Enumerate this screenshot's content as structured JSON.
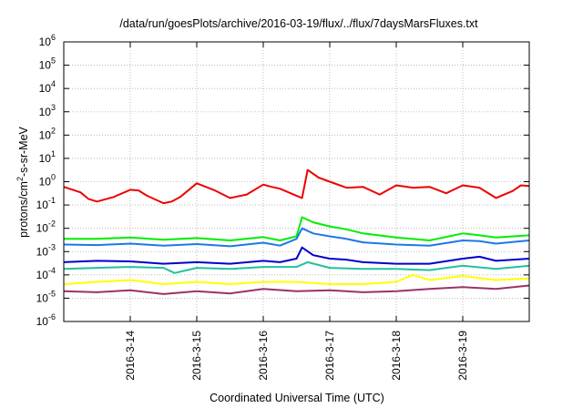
{
  "chart_data": {
    "type": "line",
    "title": "/data/run/goesPlots/archive/2016-03-19/flux/../flux/7daysMarsFluxes.txt",
    "xlabel": "Coordinated Universal Time (UTC)",
    "ylabel": {
      "prefix": "protons/cm",
      "sup": "2",
      "suffix": "-s-sr-MeV"
    },
    "yscale": "log",
    "ylim": [
      1e-06,
      1000000.0
    ],
    "y_ticks": [
      {
        "value": 1e-06,
        "base": "10",
        "exp": "-6"
      },
      {
        "value": 1e-05,
        "base": "10",
        "exp": "-5"
      },
      {
        "value": 0.0001,
        "base": "10",
        "exp": "-4"
      },
      {
        "value": 0.001,
        "base": "10",
        "exp": "-3"
      },
      {
        "value": 0.01,
        "base": "10",
        "exp": "-2"
      },
      {
        "value": 0.1,
        "base": "10",
        "exp": "-1"
      },
      {
        "value": 1.0,
        "base": "10",
        "exp": "0"
      },
      {
        "value": 10.0,
        "base": "10",
        "exp": "1"
      },
      {
        "value": 100.0,
        "base": "10",
        "exp": "2"
      },
      {
        "value": 1000.0,
        "base": "10",
        "exp": "3"
      },
      {
        "value": 10000.0,
        "base": "10",
        "exp": "4"
      },
      {
        "value": 100000.0,
        "base": "10",
        "exp": "5"
      },
      {
        "value": 1000000.0,
        "base": "10",
        "exp": "6"
      }
    ],
    "xlim": [
      "2016-03-13 00:00",
      "2016-03-20 00:00"
    ],
    "x_ticks": [
      {
        "value": "2016-03-14 00:00",
        "label": "2016-3-14"
      },
      {
        "value": "2016-03-15 00:00",
        "label": "2016-3-15"
      },
      {
        "value": "2016-03-16 00:00",
        "label": "2016-3-16"
      },
      {
        "value": "2016-03-17 00:00",
        "label": "2016-3-17"
      },
      {
        "value": "2016-03-18 00:00",
        "label": "2016-3-18"
      },
      {
        "value": "2016-03-19 00:00",
        "label": "2016-3-19"
      }
    ],
    "grid": true,
    "legend": "none",
    "series": [
      {
        "color": "#ee0000",
        "x": [
          "2016-03-13 00:00",
          "2016-03-13 06:00",
          "2016-03-13 09:00",
          "2016-03-13 12:00",
          "2016-03-13 18:00",
          "2016-03-14 00:00",
          "2016-03-14 03:00",
          "2016-03-14 06:00",
          "2016-03-14 12:00",
          "2016-03-14 15:00",
          "2016-03-14 18:00",
          "2016-03-15 00:00",
          "2016-03-15 06:00",
          "2016-03-15 12:00",
          "2016-03-15 18:00",
          "2016-03-16 00:00",
          "2016-03-16 03:00",
          "2016-03-16 06:00",
          "2016-03-16 12:00",
          "2016-03-16 14:00",
          "2016-03-16 16:00",
          "2016-03-16 20:00",
          "2016-03-17 00:00",
          "2016-03-17 06:00",
          "2016-03-17 12:00",
          "2016-03-17 18:00",
          "2016-03-18 00:00",
          "2016-03-18 06:00",
          "2016-03-18 12:00",
          "2016-03-18 18:00",
          "2016-03-19 00:00",
          "2016-03-19 06:00",
          "2016-03-19 12:00",
          "2016-03-19 18:00",
          "2016-03-19 21:00",
          "2016-03-20 00:00"
        ],
        "y": [
          0.6,
          0.35,
          0.18,
          0.14,
          0.22,
          0.45,
          0.42,
          0.25,
          0.12,
          0.14,
          0.22,
          0.85,
          0.45,
          0.2,
          0.28,
          0.75,
          0.6,
          0.5,
          0.25,
          0.2,
          3.2,
          1.5,
          1.0,
          0.55,
          0.6,
          0.28,
          0.7,
          0.55,
          0.6,
          0.32,
          0.7,
          0.55,
          0.2,
          0.4,
          0.7,
          0.65
        ]
      },
      {
        "color": "#00ee00",
        "x": [
          "2016-03-13 00:00",
          "2016-03-13 12:00",
          "2016-03-14 00:00",
          "2016-03-14 12:00",
          "2016-03-15 00:00",
          "2016-03-15 12:00",
          "2016-03-16 00:00",
          "2016-03-16 06:00",
          "2016-03-16 12:00",
          "2016-03-16 14:00",
          "2016-03-16 18:00",
          "2016-03-17 00:00",
          "2016-03-17 06:00",
          "2016-03-17 12:00",
          "2016-03-18 00:00",
          "2016-03-18 12:00",
          "2016-03-19 00:00",
          "2016-03-19 06:00",
          "2016-03-19 12:00",
          "2016-03-20 00:00"
        ],
        "y": [
          0.0035,
          0.0035,
          0.004,
          0.0032,
          0.0038,
          0.003,
          0.0042,
          0.003,
          0.0045,
          0.03,
          0.018,
          0.012,
          0.009,
          0.006,
          0.004,
          0.003,
          0.006,
          0.005,
          0.004,
          0.005
        ]
      },
      {
        "color": "#1e78e6",
        "x": [
          "2016-03-13 00:00",
          "2016-03-13 12:00",
          "2016-03-14 00:00",
          "2016-03-14 12:00",
          "2016-03-15 00:00",
          "2016-03-15 12:00",
          "2016-03-16 00:00",
          "2016-03-16 06:00",
          "2016-03-16 12:00",
          "2016-03-16 14:00",
          "2016-03-16 18:00",
          "2016-03-17 00:00",
          "2016-03-17 06:00",
          "2016-03-17 12:00",
          "2016-03-18 00:00",
          "2016-03-18 12:00",
          "2016-03-19 00:00",
          "2016-03-19 06:00",
          "2016-03-19 12:00",
          "2016-03-20 00:00"
        ],
        "y": [
          0.002,
          0.0019,
          0.0022,
          0.0018,
          0.0021,
          0.0017,
          0.0024,
          0.0018,
          0.0035,
          0.01,
          0.006,
          0.0045,
          0.0035,
          0.0025,
          0.002,
          0.0018,
          0.003,
          0.0028,
          0.0022,
          0.003
        ]
      },
      {
        "color": "#0000cc",
        "x": [
          "2016-03-13 00:00",
          "2016-03-13 12:00",
          "2016-03-14 00:00",
          "2016-03-14 12:00",
          "2016-03-15 00:00",
          "2016-03-15 12:00",
          "2016-03-16 00:00",
          "2016-03-16 06:00",
          "2016-03-16 12:00",
          "2016-03-16 14:00",
          "2016-03-16 18:00",
          "2016-03-17 00:00",
          "2016-03-17 06:00",
          "2016-03-17 12:00",
          "2016-03-18 00:00",
          "2016-03-18 12:00",
          "2016-03-19 00:00",
          "2016-03-19 06:00",
          "2016-03-19 12:00",
          "2016-03-20 00:00"
        ],
        "y": [
          0.00035,
          0.0004,
          0.00038,
          0.0003,
          0.00035,
          0.0003,
          0.0004,
          0.00035,
          0.0005,
          0.0015,
          0.0007,
          0.0005,
          0.00045,
          0.00035,
          0.0003,
          0.0003,
          0.0005,
          0.0006,
          0.0004,
          0.0005
        ]
      },
      {
        "color": "#22c0a0",
        "x": [
          "2016-03-13 00:00",
          "2016-03-13 12:00",
          "2016-03-14 00:00",
          "2016-03-14 12:00",
          "2016-03-14 16:00",
          "2016-03-15 00:00",
          "2016-03-15 12:00",
          "2016-03-16 00:00",
          "2016-03-16 12:00",
          "2016-03-16 16:00",
          "2016-03-17 00:00",
          "2016-03-17 12:00",
          "2016-03-18 00:00",
          "2016-03-18 12:00",
          "2016-03-19 00:00",
          "2016-03-19 12:00",
          "2016-03-20 00:00"
        ],
        "y": [
          0.00018,
          0.0002,
          0.00022,
          0.0002,
          0.00012,
          0.0002,
          0.00018,
          0.00022,
          0.00022,
          0.00035,
          0.0002,
          0.00018,
          0.00018,
          0.00016,
          0.00025,
          0.00018,
          0.00025
        ]
      },
      {
        "color": "#ffff00",
        "x": [
          "2016-03-13 00:00",
          "2016-03-13 12:00",
          "2016-03-14 00:00",
          "2016-03-14 12:00",
          "2016-03-15 00:00",
          "2016-03-15 12:00",
          "2016-03-16 00:00",
          "2016-03-16 12:00",
          "2016-03-17 00:00",
          "2016-03-17 12:00",
          "2016-03-18 00:00",
          "2016-03-18 06:00",
          "2016-03-18 12:00",
          "2016-03-19 00:00",
          "2016-03-19 12:00",
          "2016-03-20 00:00"
        ],
        "y": [
          4e-05,
          5e-05,
          6e-05,
          4e-05,
          5e-05,
          4e-05,
          5e-05,
          5e-05,
          4e-05,
          4e-05,
          5e-05,
          0.0001,
          6e-05,
          9e-05,
          6e-05,
          7e-05
        ]
      },
      {
        "color": "#993366",
        "x": [
          "2016-03-13 00:00",
          "2016-03-13 12:00",
          "2016-03-14 00:00",
          "2016-03-14 12:00",
          "2016-03-15 00:00",
          "2016-03-15 12:00",
          "2016-03-16 00:00",
          "2016-03-16 12:00",
          "2016-03-17 00:00",
          "2016-03-17 12:00",
          "2016-03-18 00:00",
          "2016-03-18 12:00",
          "2016-03-19 00:00",
          "2016-03-19 12:00",
          "2016-03-20 00:00"
        ],
        "y": [
          2e-05,
          1.8e-05,
          2.2e-05,
          1.5e-05,
          2e-05,
          1.6e-05,
          2.5e-05,
          2e-05,
          2.2e-05,
          1.8e-05,
          2e-05,
          2.5e-05,
          3e-05,
          2.5e-05,
          3.5e-05
        ]
      }
    ]
  }
}
